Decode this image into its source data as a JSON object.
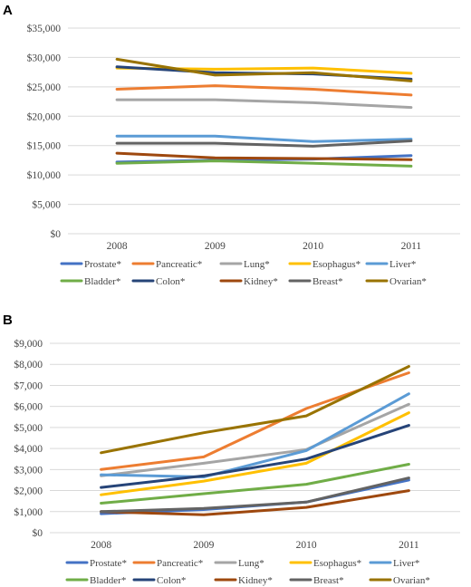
{
  "chart_data": [
    {
      "type": "line",
      "panel": "A",
      "categories": [
        "2008",
        "2009",
        "2010",
        "2011"
      ],
      "ylim": [
        0,
        35000
      ],
      "yticks": [
        0,
        5000,
        10000,
        15000,
        20000,
        25000,
        30000,
        35000
      ],
      "ytick_labels": [
        "$0",
        "$5,000",
        "$10,000",
        "$15,000",
        "$20,000",
        "$25,000",
        "$30,000",
        "$35,000"
      ],
      "grid": true,
      "legend_position": "bottom",
      "series": [
        {
          "name": "Prostate*",
          "color": "#4472C4",
          "values": [
            12200,
            12500,
            12700,
            13300
          ]
        },
        {
          "name": "Pancreatic*",
          "color": "#ED7D31",
          "values": [
            24600,
            25200,
            24600,
            23600
          ]
        },
        {
          "name": "Lung*",
          "color": "#A5A5A5",
          "values": [
            22800,
            22800,
            22300,
            21500
          ]
        },
        {
          "name": "Esophagus*",
          "color": "#FFC000",
          "values": [
            28200,
            28000,
            28200,
            27300
          ]
        },
        {
          "name": "Liver*",
          "color": "#5B9BD5",
          "values": [
            16600,
            16600,
            15700,
            16100
          ]
        },
        {
          "name": "Bladder*",
          "color": "#70AD47",
          "values": [
            12000,
            12400,
            12000,
            11500
          ]
        },
        {
          "name": "Colon*",
          "color": "#264478",
          "values": [
            28400,
            27400,
            27200,
            26300
          ]
        },
        {
          "name": "Kidney*",
          "color": "#9E480E",
          "values": [
            13700,
            12900,
            12800,
            12600
          ]
        },
        {
          "name": "Breast*",
          "color": "#636363",
          "values": [
            15400,
            15400,
            14900,
            15800
          ]
        },
        {
          "name": "Ovarian*",
          "color": "#997300",
          "values": [
            29700,
            27000,
            27400,
            26000
          ]
        }
      ]
    },
    {
      "type": "line",
      "panel": "B",
      "categories": [
        "2008",
        "2009",
        "2010",
        "2011"
      ],
      "ylim": [
        0,
        9000
      ],
      "yticks": [
        0,
        1000,
        2000,
        3000,
        4000,
        5000,
        6000,
        7000,
        8000,
        9000
      ],
      "ytick_labels": [
        "$0",
        "$1,000",
        "$2,000",
        "$3,000",
        "$4,000",
        "$5,000",
        "$6,000",
        "$7,000",
        "$8,000",
        "$9,000"
      ],
      "grid": true,
      "legend_position": "bottom",
      "series": [
        {
          "name": "Prostate*",
          "color": "#4472C4",
          "values": [
            900,
            1100,
            1450,
            2500
          ]
        },
        {
          "name": "Pancreatic*",
          "color": "#ED7D31",
          "values": [
            3000,
            3600,
            5900,
            7600
          ]
        },
        {
          "name": "Lung*",
          "color": "#A5A5A5",
          "values": [
            2700,
            3300,
            3950,
            6100
          ]
        },
        {
          "name": "Esophagus*",
          "color": "#FFC000",
          "values": [
            1800,
            2450,
            3300,
            5700
          ]
        },
        {
          "name": "Liver*",
          "color": "#5B9BD5",
          "values": [
            2750,
            2650,
            3900,
            6600
          ]
        },
        {
          "name": "Bladder*",
          "color": "#70AD47",
          "values": [
            1400,
            1850,
            2300,
            3250
          ]
        },
        {
          "name": "Colon*",
          "color": "#264478",
          "values": [
            2150,
            2700,
            3500,
            5100
          ]
        },
        {
          "name": "Kidney*",
          "color": "#9E480E",
          "values": [
            1000,
            850,
            1200,
            2000
          ]
        },
        {
          "name": "Breast*",
          "color": "#636363",
          "values": [
            1000,
            1150,
            1450,
            2600
          ]
        },
        {
          "name": "Ovarian*",
          "color": "#997300",
          "values": [
            3800,
            4750,
            5550,
            7900
          ]
        }
      ]
    }
  ]
}
